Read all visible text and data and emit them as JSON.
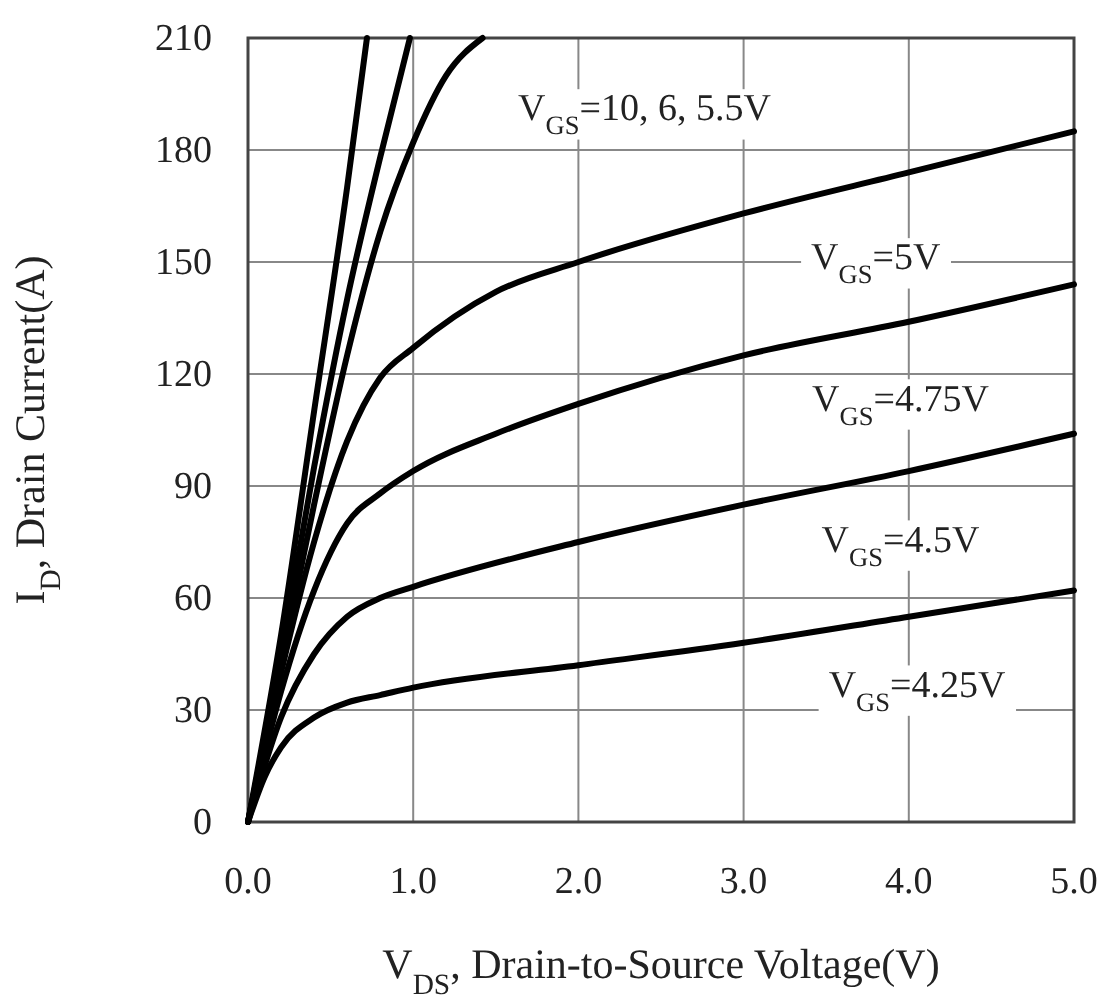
{
  "chart_data": {
    "type": "line",
    "xlabel": "V$_{DS}$, Drain-to-Source Voltage(V)",
    "ylabel": "I$_{D}$, Drain Current(A)",
    "xlim": [
      0,
      5
    ],
    "ylim": [
      0,
      210
    ],
    "xticks": [
      {
        "value": 0,
        "label": "0.0"
      },
      {
        "value": 1,
        "label": "1.0"
      },
      {
        "value": 2,
        "label": "2.0"
      },
      {
        "value": 3,
        "label": "3.0"
      },
      {
        "value": 4,
        "label": "4.0"
      },
      {
        "value": 5,
        "label": "5.0"
      }
    ],
    "yticks": [
      0,
      30,
      60,
      90,
      120,
      150,
      180,
      210
    ],
    "grid": true,
    "marker": "none",
    "line_style": "solid",
    "series": [
      {
        "color": "#000000",
        "x": [
          0,
          0.2,
          0.4,
          0.6,
          0.72
        ],
        "values": [
          0,
          50,
          110,
          170,
          210
        ]
      },
      {
        "color": "#000000",
        "x": [
          0,
          0.2,
          0.4,
          0.6,
          0.8,
          0.98
        ],
        "values": [
          0,
          45,
          95,
          140,
          178,
          210
        ]
      },
      {
        "color": "#000000",
        "x": [
          0,
          0.2,
          0.4,
          0.6,
          0.8,
          1.0,
          1.2,
          1.42
        ],
        "values": [
          0,
          42,
          85,
          125,
          158,
          182,
          200,
          210
        ]
      },
      {
        "color": "#000000",
        "x": [
          0,
          0.2,
          0.4,
          0.6,
          0.8,
          1.0,
          1.5,
          2.0,
          3.0,
          4.0,
          5.0
        ],
        "values": [
          0,
          40,
          75,
          102,
          119,
          127,
          142,
          150,
          163,
          174,
          185
        ]
      },
      {
        "color": "#000000",
        "x": [
          0,
          0.2,
          0.4,
          0.6,
          0.8,
          1.0,
          1.5,
          2.0,
          3.0,
          4.0,
          5.0
        ],
        "values": [
          0,
          35,
          62,
          80,
          88,
          94,
          104,
          112,
          125,
          134,
          144
        ]
      },
      {
        "color": "#000000",
        "x": [
          0,
          0.2,
          0.4,
          0.6,
          0.8,
          1.0,
          2.0,
          3.0,
          4.0,
          5.0
        ],
        "values": [
          0,
          28,
          45,
          55,
          60,
          63,
          75,
          85,
          94,
          104
        ]
      },
      {
        "color": "#000000",
        "x": [
          0,
          0.1,
          0.2,
          0.4,
          0.6,
          0.8,
          1.0,
          2.0,
          3.0,
          4.0,
          5.0
        ],
        "values": [
          0,
          12,
          20,
          28,
          32,
          34,
          36,
          42,
          48,
          55,
          62
        ]
      }
    ],
    "annotations": [
      "V$_{GS}$=10, 6, 5.5V",
      "V$_{GS}$=5V",
      "V$_{GS}$=4.75V",
      "V$_{GS}$=4.5V",
      "V$_{GS}$=4.25V"
    ]
  }
}
